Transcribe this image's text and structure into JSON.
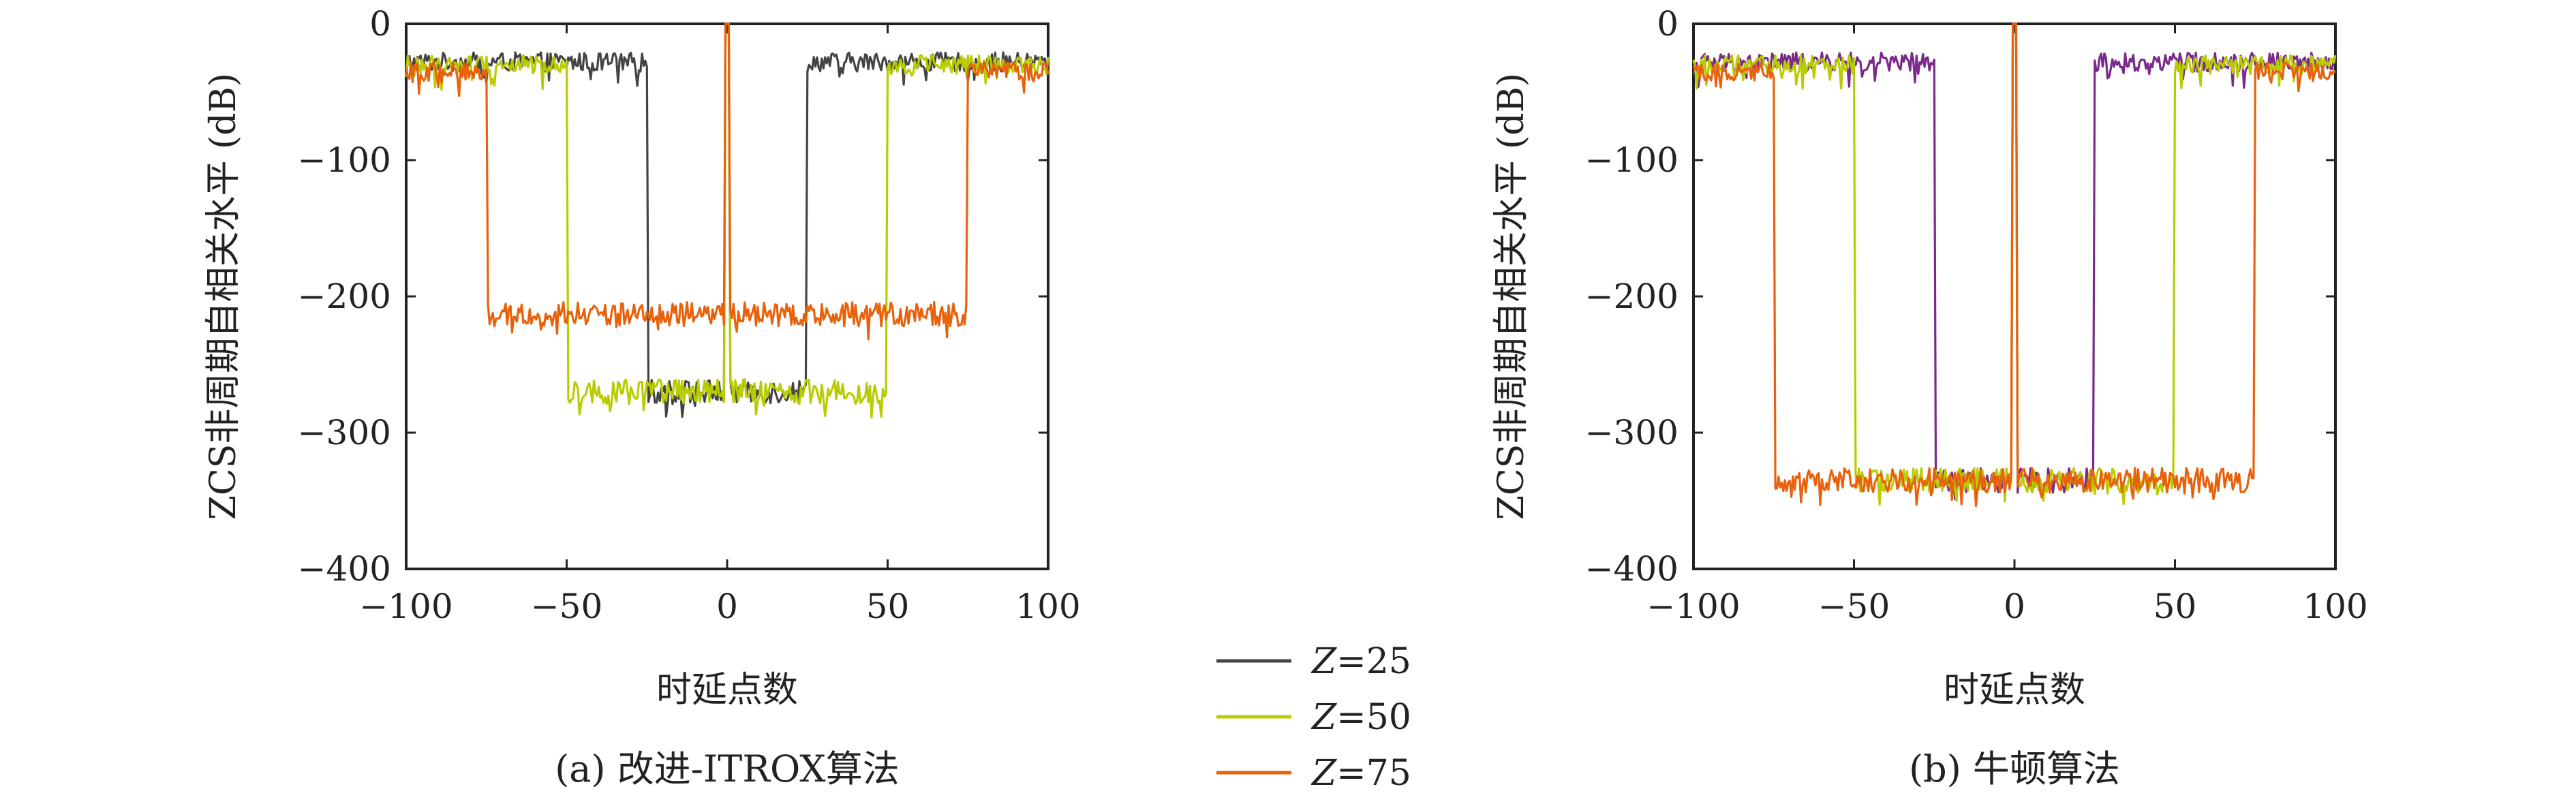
{
  "colors": {
    "z25": "#444444",
    "z25_panel_b": "#7a2a8a",
    "z50": "#b8cc00",
    "z75": "#e8620c",
    "z75_panel_b": "#d84a6a",
    "axis": "#222222",
    "background": "#ffffff"
  },
  "legend": {
    "placement": "bottom-center",
    "items": [
      {
        "z": "Z",
        "value": "=25",
        "color": "#444444"
      },
      {
        "z": "Z",
        "value": "=50",
        "color": "#b8cc00"
      },
      {
        "z": "Z",
        "value": "=75",
        "color": "#e8620c"
      }
    ]
  },
  "chart_data": [
    {
      "type": "line",
      "caption": "(a) 改进-ITROX算法",
      "xlabel": "时延点数",
      "ylabel": "ZCS非周期自相关水平 (dB)",
      "xlim": [
        -100,
        100
      ],
      "ylim": [
        -400,
        0
      ],
      "xticks": [
        -100,
        -50,
        0,
        50,
        100
      ],
      "xtick_labels": [
        "−100",
        "−50",
        "0",
        "50",
        "100"
      ],
      "yticks": [
        0,
        -100,
        -200,
        -300,
        -400
      ],
      "ytick_labels": [
        "0",
        "−100",
        "−200",
        "−300",
        "−400"
      ],
      "grid": false,
      "series": [
        {
          "name": "Z=25",
          "zcz": 25,
          "sidelobe_in": -270,
          "sidelobe_out": -28,
          "peak": 0
        },
        {
          "name": "Z=50",
          "zcz": 50,
          "sidelobe_in": -270,
          "sidelobe_out": -30,
          "peak": 0
        },
        {
          "name": "Z=75",
          "zcz": 75,
          "sidelobe_in": -213,
          "sidelobe_out": -35,
          "peak": 0
        }
      ]
    },
    {
      "type": "line",
      "caption": "(b) 牛顿算法",
      "xlabel": "时延点数",
      "ylabel": "ZCS非周期自相关水平 (dB)",
      "xlim": [
        -100,
        100
      ],
      "ylim": [
        -400,
        0
      ],
      "xticks": [
        -100,
        -50,
        0,
        50,
        100
      ],
      "xtick_labels": [
        "−100",
        "−50",
        "0",
        "50",
        "100"
      ],
      "yticks": [
        0,
        -100,
        -200,
        -300,
        -400
      ],
      "ytick_labels": [
        "0",
        "−100",
        "−200",
        "−300",
        "−400"
      ],
      "grid": false,
      "series": [
        {
          "name": "Z=25",
          "zcz": 25,
          "sidelobe_in": -335,
          "sidelobe_out": -28,
          "peak": 0
        },
        {
          "name": "Z=50",
          "zcz": 50,
          "sidelobe_in": -335,
          "sidelobe_out": -30,
          "peak": 0
        },
        {
          "name": "Z=75",
          "zcz": 75,
          "sidelobe_in": -335,
          "sidelobe_out": -35,
          "peak": 0
        }
      ]
    }
  ]
}
